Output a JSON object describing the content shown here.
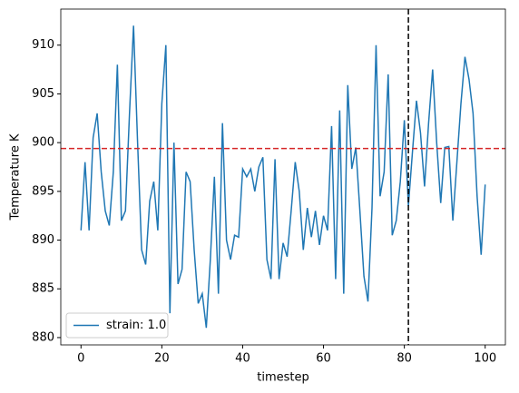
{
  "chart_data": {
    "type": "line",
    "xlabel": "timestep",
    "ylabel": "Temperature K",
    "x": [
      0,
      1,
      2,
      3,
      4,
      5,
      6,
      7,
      8,
      9,
      10,
      11,
      12,
      13,
      14,
      15,
      16,
      17,
      18,
      19,
      20,
      21,
      22,
      23,
      24,
      25,
      26,
      27,
      28,
      29,
      30,
      31,
      32,
      33,
      34,
      35,
      36,
      37,
      38,
      39,
      40,
      41,
      42,
      43,
      44,
      45,
      46,
      47,
      48,
      49,
      50,
      51,
      52,
      53,
      54,
      55,
      56,
      57,
      58,
      59,
      60,
      61,
      62,
      63,
      64,
      65,
      66,
      67,
      68,
      69,
      70,
      71,
      72,
      73,
      74,
      75,
      76,
      77,
      78,
      79,
      80,
      81,
      82,
      83,
      84,
      85,
      86,
      87,
      88,
      89,
      90,
      91,
      92,
      93,
      94,
      95,
      96,
      97,
      98,
      99,
      100
    ],
    "series": [
      {
        "name": "strain: 1.0",
        "color": "#1f77b4",
        "values": [
          891,
          898,
          891,
          900.5,
          903,
          897,
          893,
          891.5,
          897,
          908,
          892,
          893,
          903,
          912,
          900,
          889,
          887.5,
          894,
          896,
          891,
          904,
          910,
          882.5,
          900,
          885.5,
          887,
          897,
          896,
          889,
          883.5,
          884.5,
          881,
          888,
          896.5,
          884.5,
          902,
          890,
          888,
          890.5,
          890.3,
          897.3,
          896.5,
          897.3,
          895,
          897.5,
          898.5,
          888,
          886,
          898.3,
          886,
          889.7,
          888.3,
          893,
          898,
          895,
          889,
          893.3,
          890.3,
          893,
          889.5,
          892.5,
          891,
          901.7,
          886,
          903.3,
          884.5,
          905.9,
          897.3,
          899.5,
          893,
          886.3,
          883.7,
          893.3,
          910,
          894.5,
          897,
          907,
          890.5,
          892,
          896,
          902.3,
          893.5,
          899,
          904.3,
          901,
          895.5,
          902,
          907.5,
          900,
          893.8,
          899.5,
          899.6,
          892,
          898,
          904,
          908.8,
          906.5,
          903,
          894.5,
          888.5,
          895.7
        ]
      }
    ],
    "hline": {
      "value": 899.4,
      "color": "#d62728"
    },
    "vline": {
      "value": 81,
      "color": "#000000"
    },
    "xlim": [
      -5,
      105
    ],
    "ylim": [
      879.25,
      913.7
    ],
    "xticks": [
      0,
      20,
      40,
      60,
      80,
      100
    ],
    "yticks": [
      880,
      885,
      890,
      895,
      900,
      905,
      910
    ],
    "legend": "lower left"
  }
}
